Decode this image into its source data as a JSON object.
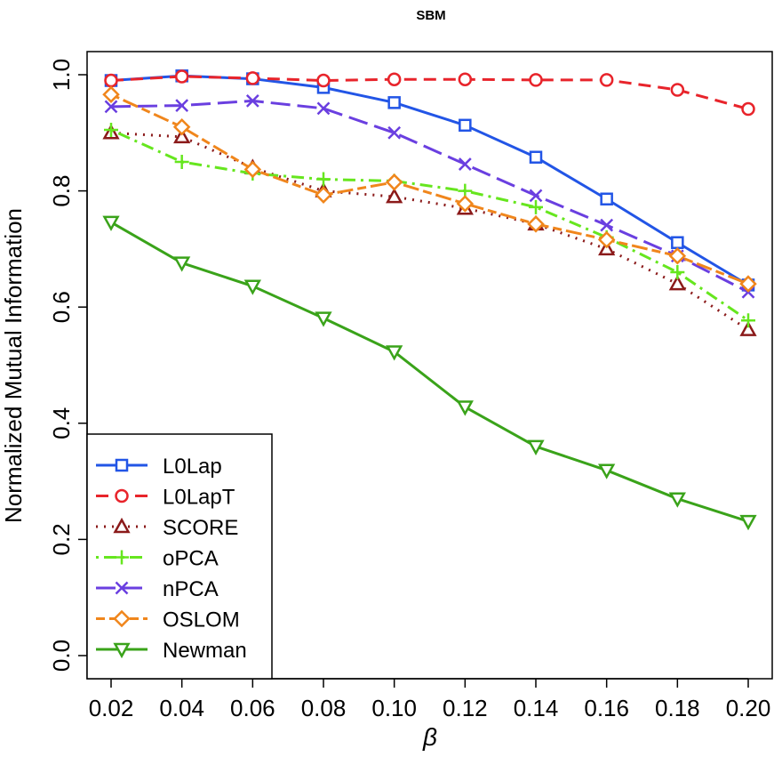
{
  "chart_data": {
    "type": "line",
    "title": "SBM",
    "xlabel": "β",
    "ylabel": "Normalized Mutual Information",
    "x": [
      0.02,
      0.04,
      0.06,
      0.08,
      0.1,
      0.12,
      0.14,
      0.16,
      0.18,
      0.2
    ],
    "x_tick_labels": [
      "0.02",
      "0.04",
      "0.06",
      "0.08",
      "0.10",
      "0.12",
      "0.14",
      "0.16",
      "0.18",
      "0.20"
    ],
    "y_ticks": [
      0.0,
      0.2,
      0.4,
      0.6,
      0.8,
      1.0
    ],
    "y_tick_labels": [
      "0.0",
      "0.2",
      "0.4",
      "0.6",
      "0.8",
      "1.0"
    ],
    "xlim": [
      0.02,
      0.2
    ],
    "ylim": [
      0.0,
      1.0
    ],
    "grid": false,
    "legend_position": "bottom-left",
    "series": [
      {
        "name": "L0Lap",
        "color": "#2255e6",
        "dash": "solid",
        "marker": "square",
        "values": [
          0.99,
          0.998,
          0.993,
          0.978,
          0.952,
          0.913,
          0.858,
          0.786,
          0.711,
          0.638
        ]
      },
      {
        "name": "L0LapT",
        "color": "#e8242b",
        "dash": "dashed",
        "marker": "circle",
        "values": [
          0.99,
          0.997,
          0.994,
          0.99,
          0.992,
          0.992,
          0.991,
          0.991,
          0.974,
          0.941
        ]
      },
      {
        "name": "SCORE",
        "color": "#8b1a1a",
        "dash": "dotted",
        "marker": "triangle-up",
        "values": [
          0.9,
          0.893,
          0.84,
          0.8,
          0.79,
          0.77,
          0.743,
          0.7,
          0.64,
          0.561
        ]
      },
      {
        "name": "oPCA",
        "color": "#66e61e",
        "dash": "dashdot",
        "marker": "plus",
        "values": [
          0.905,
          0.85,
          0.83,
          0.82,
          0.817,
          0.8,
          0.772,
          0.72,
          0.66,
          0.577
        ]
      },
      {
        "name": "nPCA",
        "color": "#6a3fe0",
        "dash": "longdash",
        "marker": "x",
        "values": [
          0.945,
          0.947,
          0.955,
          0.942,
          0.9,
          0.846,
          0.792,
          0.741,
          0.688,
          0.626
        ]
      },
      {
        "name": "OSLOM",
        "color": "#f0861c",
        "dash": "twodash",
        "marker": "diamond",
        "values": [
          0.966,
          0.91,
          0.837,
          0.793,
          0.815,
          0.778,
          0.743,
          0.716,
          0.688,
          0.64
        ]
      },
      {
        "name": "Newman",
        "color": "#3aa31a",
        "dash": "solid",
        "marker": "triangle-down",
        "values": [
          0.746,
          0.676,
          0.636,
          0.581,
          0.523,
          0.428,
          0.36,
          0.319,
          0.27,
          0.231
        ]
      }
    ]
  }
}
